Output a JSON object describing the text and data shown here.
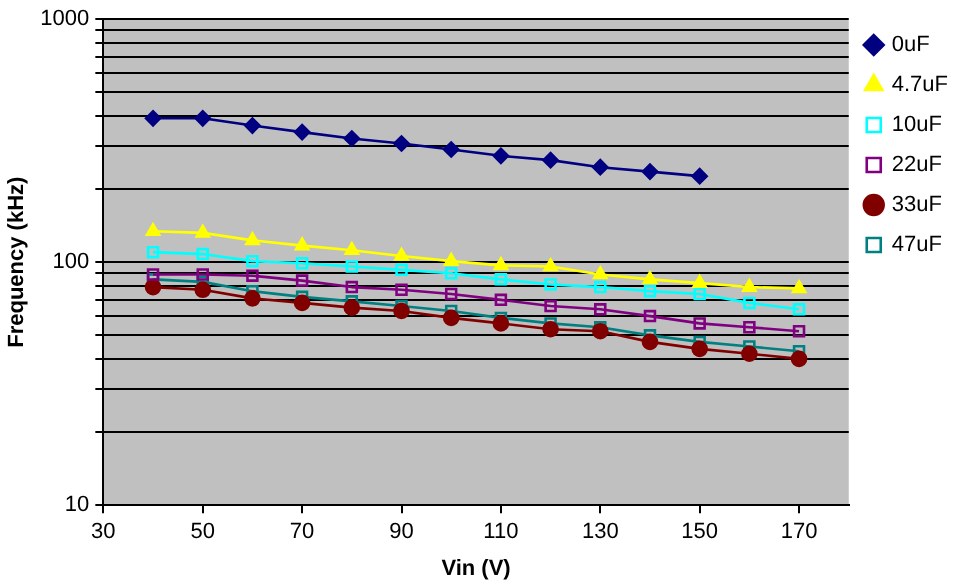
{
  "chart_data": {
    "type": "line",
    "xlabel": "Vin (V)",
    "ylabel": "Frequency (kHz)",
    "x": [
      40,
      50,
      60,
      70,
      80,
      90,
      100,
      110,
      120,
      130,
      140,
      150,
      160,
      170
    ],
    "series": [
      {
        "name": "0uF",
        "color": "#000080",
        "marker": "diamond",
        "values": [
          391,
          391,
          365,
          343,
          323,
          308,
          291,
          274,
          263,
          246,
          236,
          226,
          null,
          null
        ]
      },
      {
        "name": "4.7uF",
        "color": "#ffff00",
        "marker": "triangle",
        "values": [
          134,
          132,
          123,
          117,
          112,
          106,
          101,
          97,
          96,
          89,
          85,
          82,
          79,
          78
        ]
      },
      {
        "name": "10uF",
        "color": "#00ffff",
        "marker": "square",
        "values": [
          110,
          108,
          101,
          99,
          96,
          93,
          90,
          85,
          81,
          79,
          76,
          74,
          68,
          64
        ]
      },
      {
        "name": "22uF",
        "color": "#800080",
        "marker": "square",
        "values": [
          89,
          89,
          88,
          84,
          79,
          77,
          74,
          70,
          66,
          64,
          60,
          56,
          54,
          52
        ]
      },
      {
        "name": "33uF",
        "color": "#800000",
        "marker": "circle",
        "values": [
          79,
          77,
          71,
          68,
          65,
          63,
          59,
          56,
          53,
          52,
          47,
          44,
          42,
          40
        ]
      },
      {
        "name": "47uF",
        "color": "#008080",
        "marker": "square",
        "values": [
          85,
          83,
          76,
          72,
          69,
          66,
          63,
          59,
          56,
          54,
          50,
          47,
          45,
          43
        ]
      }
    ],
    "log": "y",
    "xlim": [
      30,
      180
    ],
    "xticks": [
      30,
      50,
      70,
      90,
      110,
      130,
      150,
      170
    ],
    "ylim": [
      10,
      1000
    ],
    "yticks": [
      10,
      {
        "value": 20,
        "label": null
      },
      {
        "value": 30,
        "label": null
      },
      {
        "value": 40,
        "label": null
      },
      {
        "value": 50,
        "label": null
      },
      {
        "value": 60,
        "label": null
      },
      {
        "value": 70,
        "label": null
      },
      {
        "value": 80,
        "label": null
      },
      {
        "value": 90,
        "label": null
      },
      100,
      {
        "value": 200,
        "label": null
      },
      {
        "value": 300,
        "label": null
      },
      {
        "value": 400,
        "label": null
      },
      {
        "value": 500,
        "label": null
      },
      {
        "value": 600,
        "label": null
      },
      {
        "value": 700,
        "label": null
      },
      {
        "value": 800,
        "label": null
      },
      {
        "value": 900,
        "label": null
      },
      1000
    ],
    "grid": "y",
    "legend": "top right",
    "line_style": "solid"
  }
}
